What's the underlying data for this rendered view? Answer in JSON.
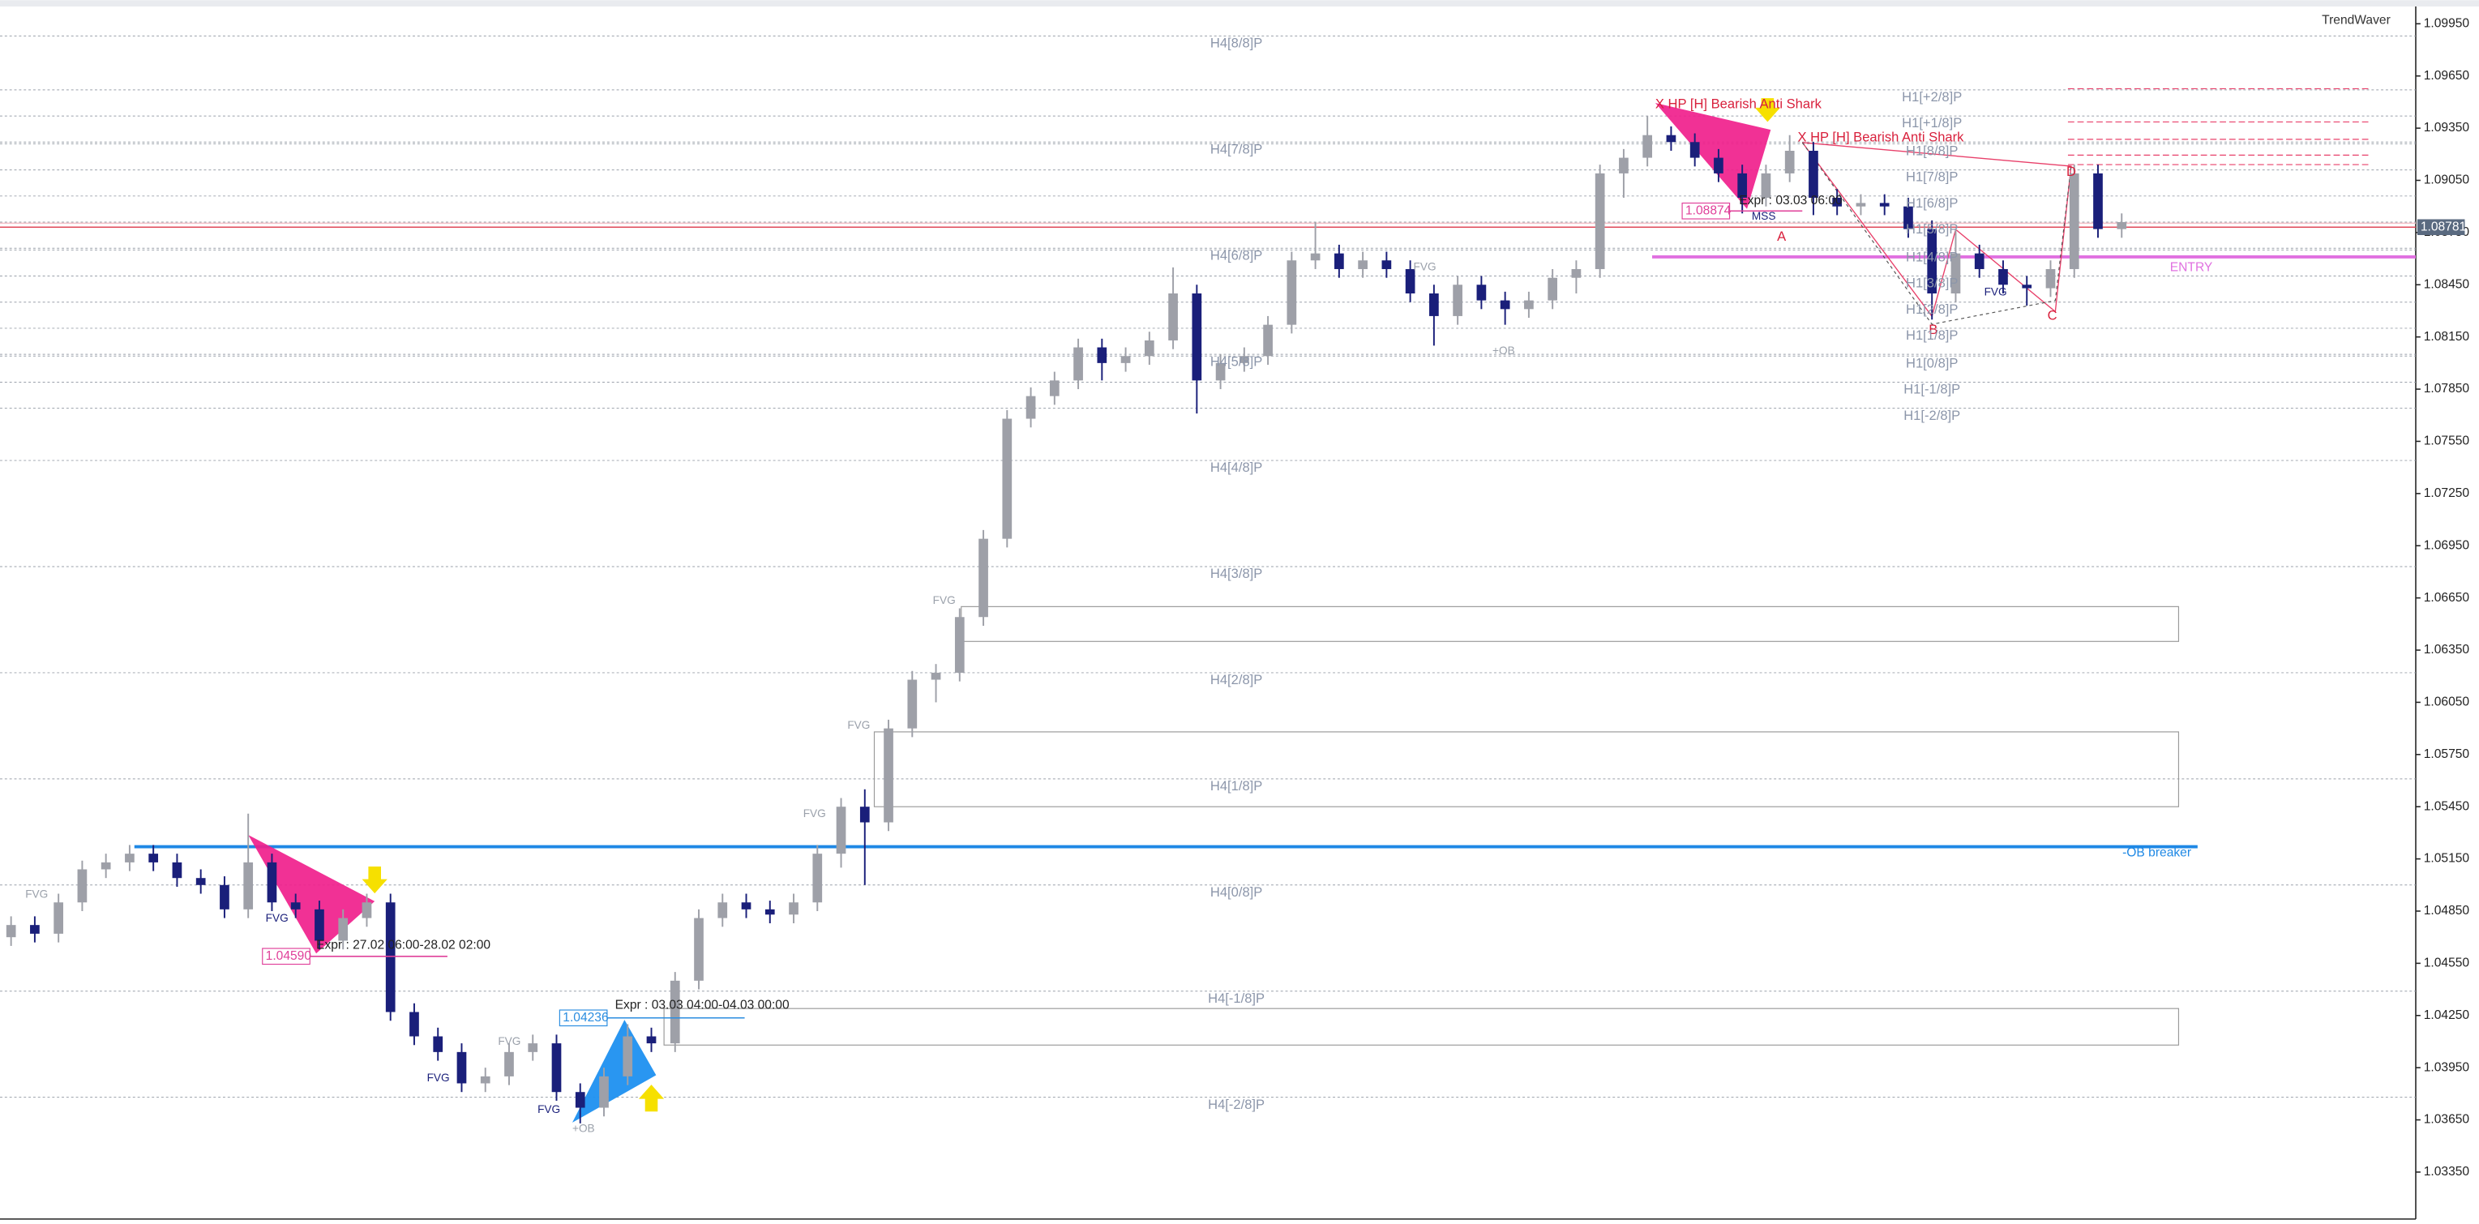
{
  "chart_data": {
    "type": "candlestick",
    "brand": "TrendWaver",
    "up_color": "#9ea0a8",
    "down_color": "#1a1f7a",
    "ylim": [
      1.0308,
      1.1004
    ],
    "yticks": [
      {
        "value": 1.0995,
        "label": "1.09950"
      },
      {
        "value": 1.0965,
        "label": "1.09650"
      },
      {
        "value": 1.0935,
        "label": "1.09350"
      },
      {
        "value": 1.0905,
        "label": "1.09050"
      },
      {
        "value": 1.0875,
        "label": "1.08750"
      },
      {
        "value": 1.0845,
        "label": "1.08450"
      },
      {
        "value": 1.0815,
        "label": "1.08150"
      },
      {
        "value": 1.0785,
        "label": "1.07850"
      },
      {
        "value": 1.0755,
        "label": "1.07550"
      },
      {
        "value": 1.0725,
        "label": "1.07250"
      },
      {
        "value": 1.0695,
        "label": "1.06950"
      },
      {
        "value": 1.0665,
        "label": "1.06650"
      },
      {
        "value": 1.0635,
        "label": "1.06350"
      },
      {
        "value": 1.0605,
        "label": "1.06050"
      },
      {
        "value": 1.0575,
        "label": "1.05750"
      },
      {
        "value": 1.0545,
        "label": "1.05450"
      },
      {
        "value": 1.0515,
        "label": "1.05150"
      },
      {
        "value": 1.0485,
        "label": "1.04850"
      },
      {
        "value": 1.0455,
        "label": "1.04550"
      },
      {
        "value": 1.0425,
        "label": "1.04250"
      },
      {
        "value": 1.0395,
        "label": "1.03950"
      },
      {
        "value": 1.0365,
        "label": "1.03650"
      },
      {
        "value": 1.0335,
        "label": "1.03350"
      }
    ],
    "open": [
      1.047,
      1.0477,
      1.0472,
      1.049,
      1.0509,
      1.0513,
      1.0518,
      1.0513,
      1.0504,
      1.05,
      1.0486,
      1.0513,
      1.049,
      1.0486,
      1.0468,
      1.0481,
      1.049,
      1.0427,
      1.0413,
      1.0404,
      1.0386,
      1.039,
      1.0404,
      1.0409,
      1.0381,
      1.0372,
      1.039,
      1.0413,
      1.0409,
      1.0445,
      1.0481,
      1.049,
      1.0486,
      1.0483,
      1.049,
      1.0518,
      1.0545,
      1.0536,
      1.059,
      1.0618,
      1.0622,
      1.0654,
      1.0699,
      1.0768,
      1.0781,
      1.079,
      1.0809,
      1.08,
      1.0804,
      1.0813,
      1.084,
      1.079,
      1.08,
      1.0804,
      1.0822,
      1.0859,
      1.0863,
      1.0854,
      1.0859,
      1.0854,
      1.084,
      1.0827,
      1.0845,
      1.0836,
      1.0831,
      1.0836,
      1.0849,
      1.0854,
      1.0909,
      1.0918,
      1.0931,
      1.0927,
      1.0918,
      1.0909,
      1.0895,
      1.0909,
      1.0922,
      1.0895,
      1.089,
      1.0892,
      1.089,
      1.0877,
      1.084,
      1.0863,
      1.0854,
      1.0845,
      1.0843,
      1.0854,
      1.0909,
      1.0877
    ],
    "high": [
      1.0482,
      1.0482,
      1.0495,
      1.0514,
      1.0518,
      1.0523,
      1.0523,
      1.0518,
      1.0509,
      1.0505,
      1.0541,
      1.0518,
      1.0495,
      1.0491,
      1.0486,
      1.0495,
      1.0495,
      1.0432,
      1.0418,
      1.0409,
      1.0395,
      1.0409,
      1.0414,
      1.0414,
      1.0386,
      1.0395,
      1.042,
      1.0418,
      1.045,
      1.0486,
      1.0495,
      1.0495,
      1.0491,
      1.0495,
      1.0523,
      1.055,
      1.0555,
      1.0595,
      1.0623,
      1.0627,
      1.0659,
      1.0704,
      1.0773,
      1.0786,
      1.0795,
      1.0814,
      1.0814,
      1.0809,
      1.0818,
      1.0855,
      1.0845,
      1.0805,
      1.0809,
      1.0827,
      1.0864,
      1.0881,
      1.0868,
      1.0864,
      1.0864,
      1.0859,
      1.0845,
      1.085,
      1.085,
      1.0841,
      1.0841,
      1.0854,
      1.0859,
      1.0914,
      1.0923,
      1.0942,
      1.0936,
      1.0932,
      1.0923,
      1.0914,
      1.0914,
      1.0931,
      1.0927,
      1.09,
      1.0897,
      1.0897,
      1.0895,
      1.0882,
      1.0877,
      1.0868,
      1.0859,
      1.085,
      1.0859,
      1.0914,
      1.0914,
      1.0886
    ],
    "low": [
      1.0465,
      1.0467,
      1.0467,
      1.0485,
      1.0504,
      1.0508,
      1.0508,
      1.0499,
      1.0495,
      1.0481,
      1.0481,
      1.0485,
      1.0481,
      1.0463,
      1.0463,
      1.0476,
      1.0422,
      1.0408,
      1.0399,
      1.0381,
      1.0381,
      1.0385,
      1.0399,
      1.0376,
      1.0363,
      1.0367,
      1.0385,
      1.0404,
      1.0404,
      1.044,
      1.0476,
      1.0481,
      1.0478,
      1.0478,
      1.0485,
      1.051,
      1.05,
      1.0531,
      1.0585,
      1.0605,
      1.0617,
      1.0649,
      1.0694,
      1.0763,
      1.0776,
      1.0785,
      1.079,
      1.0795,
      1.0799,
      1.0808,
      1.0771,
      1.0785,
      1.0795,
      1.0799,
      1.0817,
      1.0854,
      1.0849,
      1.0849,
      1.0849,
      1.0835,
      1.081,
      1.0822,
      1.0831,
      1.0822,
      1.0826,
      1.0831,
      1.084,
      1.0849,
      1.0895,
      1.0913,
      1.0922,
      1.0913,
      1.0904,
      1.0886,
      1.089,
      1.0904,
      1.0885,
      1.0885,
      1.0885,
      1.0885,
      1.0872,
      1.0825,
      1.0835,
      1.0849,
      1.084,
      1.0833,
      1.0838,
      1.0849,
      1.0872,
      1.0872
    ],
    "close": [
      1.0477,
      1.0472,
      1.049,
      1.0509,
      1.0513,
      1.0518,
      1.0513,
      1.0504,
      1.05,
      1.0486,
      1.0513,
      1.049,
      1.0486,
      1.0468,
      1.0481,
      1.049,
      1.0427,
      1.0413,
      1.0404,
      1.0386,
      1.039,
      1.0404,
      1.0409,
      1.0381,
      1.0372,
      1.039,
      1.0413,
      1.0409,
      1.0445,
      1.0481,
      1.049,
      1.0486,
      1.0483,
      1.049,
      1.0518,
      1.0545,
      1.0536,
      1.059,
      1.0618,
      1.0622,
      1.0654,
      1.0699,
      1.0768,
      1.0781,
      1.079,
      1.0809,
      1.08,
      1.0804,
      1.0813,
      1.084,
      1.079,
      1.08,
      1.0804,
      1.0822,
      1.0859,
      1.0863,
      1.0854,
      1.0859,
      1.0854,
      1.084,
      1.0827,
      1.0845,
      1.0836,
      1.0831,
      1.0836,
      1.0849,
      1.0854,
      1.0909,
      1.0918,
      1.0931,
      1.0927,
      1.0918,
      1.0909,
      1.0895,
      1.0909,
      1.0922,
      1.0895,
      1.089,
      1.0892,
      1.089,
      1.0877,
      1.084,
      1.0863,
      1.0854,
      1.0845,
      1.0843,
      1.0854,
      1.0909,
      1.0877,
      1.0881
    ],
    "h4_levels": [
      {
        "label": "H4[8/8]P",
        "value": 1.0988
      },
      {
        "label": "H4[7/8]P",
        "value": 1.0927
      },
      {
        "label": "H4[6/8]P",
        "value": 1.0866
      },
      {
        "label": "H4[5/8]P",
        "value": 1.0805
      },
      {
        "label": "H4[4/8]P",
        "value": 1.0744
      },
      {
        "label": "H4[3/8]P",
        "value": 1.0683
      },
      {
        "label": "H4[2/8]P",
        "value": 1.0622
      },
      {
        "label": "H4[1/8]P",
        "value": 1.0561
      },
      {
        "label": "H4[0/8]P",
        "value": 1.05
      },
      {
        "label": "H4[-1/8]P",
        "value": 1.0439
      },
      {
        "label": "H4[-2/8]P",
        "value": 1.0378
      }
    ],
    "h1_levels": [
      {
        "label": "H1[+2/8]P",
        "value": 1.0957
      },
      {
        "label": "H1[+1/8]P",
        "value": 1.0942
      },
      {
        "label": "H1[8/8]P",
        "value": 1.0926
      },
      {
        "label": "H1[7/8]P",
        "value": 1.0911
      },
      {
        "label": "H1[6/8]P",
        "value": 1.0896
      },
      {
        "label": "H1[5/8]P",
        "value": 1.0881
      },
      {
        "label": "H1[4/8]P",
        "value": 1.0865
      },
      {
        "label": "H1[3/8]P",
        "value": 1.085
      },
      {
        "label": "H1[2/8]P",
        "value": 1.0835
      },
      {
        "label": "H1[1/8]P",
        "value": 1.082
      },
      {
        "label": "H1[0/8]P",
        "value": 1.0804
      },
      {
        "label": "H1[-1/8]P",
        "value": 1.0789
      },
      {
        "label": "H1[-2/8]P",
        "value": 1.0774
      }
    ],
    "zones": [
      {
        "top": 1.066,
        "bottom": 1.064
      },
      {
        "top": 1.0588,
        "bottom": 1.0545
      },
      {
        "top": 1.0429,
        "bottom": 1.0408
      }
    ],
    "current_price": {
      "value": 1.08781,
      "label": "1.08781",
      "color": "#e04858"
    },
    "ob_breaker": {
      "value": 1.0522,
      "label": "-OB breaker",
      "color": "#1e88e5"
    },
    "entry": {
      "value": 1.0861,
      "label": "ENTRY",
      "color": "#e070e0"
    },
    "pattern_prices": [
      {
        "value": 1.0459,
        "label": "1.04590",
        "color": "#e0409a"
      },
      {
        "value": 1.04236,
        "label": "1.04236",
        "color": "#2a8de0"
      },
      {
        "value": 1.08874,
        "label": "1.08874",
        "color": "#e0409a"
      }
    ],
    "annotations": {
      "fvg": "FVG",
      "ob": "+OB",
      "expiry_1": "Expr : 27.02 06:00-28.02 02:00",
      "expiry_2": "Expr : 03.03 04:00-04.03 00:00",
      "expiry_3": "Expr : 03.03 06:00",
      "pattern": "X HP [H] Bearish Anti Shark",
      "mss": "MSS",
      "a": "A",
      "b": "B",
      "c": "C",
      "d": "D"
    }
  }
}
